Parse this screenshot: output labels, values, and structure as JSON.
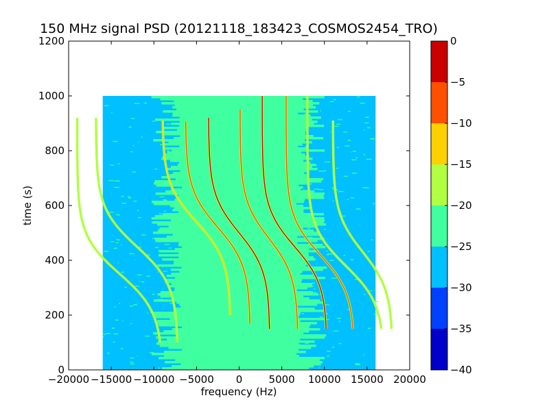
{
  "chart_data": {
    "type": "heatmap",
    "title": "150 MHz signal PSD (20121118_183423_COSMOS2454_TRO)",
    "xlabel": "frequency (Hz)",
    "ylabel": "time (s)",
    "xlim": [
      -20000,
      20000
    ],
    "ylim": [
      0,
      1200
    ],
    "xticks": [
      -20000,
      -15000,
      -10000,
      -5000,
      0,
      5000,
      10000,
      15000,
      20000
    ],
    "xtick_labels": [
      "−20000",
      "−15000",
      "−10000",
      "−5000",
      "0",
      "5000",
      "10000",
      "15000",
      "20000"
    ],
    "yticks": [
      0,
      200,
      400,
      600,
      800,
      1000,
      1200
    ],
    "ytick_labels": [
      "0",
      "200",
      "400",
      "600",
      "800",
      "1000",
      "1200"
    ],
    "data_extent": {
      "freq": [
        -16000,
        16000
      ],
      "time": [
        0,
        1000
      ]
    },
    "noise_band": {
      "inner_freq": [
        -7000,
        7000
      ],
      "outer_freq": [
        -10000,
        10000
      ],
      "level": -22.5,
      "background_level": -27.5
    },
    "traces": [
      {
        "center_freq": -12000,
        "t0": 450,
        "half_span": 4800,
        "t_range": [
          100,
          920
        ],
        "peak_level": -17
      },
      {
        "center_freq": -5000,
        "t0": 540,
        "half_span": 4000,
        "t_range": [
          200,
          910
        ],
        "peak_level": -12
      },
      {
        "center_freq": -2500,
        "t0": 520,
        "half_span": 3800,
        "t_range": [
          170,
          905
        ],
        "peak_level": -7
      },
      {
        "center_freq": 0,
        "t0": 500,
        "half_span": 3600,
        "t_range": [
          150,
          920
        ],
        "peak_level": -3
      },
      {
        "center_freq": 3500,
        "t0": 480,
        "half_span": 3400,
        "t_range": [
          150,
          950
        ],
        "peak_level": -7
      },
      {
        "center_freq": 6500,
        "t0": 450,
        "half_span": 3800,
        "t_range": [
          150,
          1000
        ],
        "peak_level": -3
      },
      {
        "center_freq": 9500,
        "t0": 420,
        "half_span": 4000,
        "t_range": [
          150,
          1000
        ],
        "peak_level": -7
      },
      {
        "center_freq": 12500,
        "t0": 380,
        "half_span": 4500,
        "t_range": [
          150,
          1000
        ],
        "peak_level": -17
      },
      {
        "center_freq": 14500,
        "t0": 430,
        "half_span": 3500,
        "t_range": [
          150,
          910
        ],
        "peak_level": -17
      },
      {
        "center_freq": -14000,
        "t0": 350,
        "half_span": 5000,
        "t_range": [
          100,
          920
        ],
        "peak_level": -20
      }
    ],
    "colorbar": {
      "levels": [
        -40,
        -35,
        -30,
        -25,
        -20,
        -15,
        -10,
        -5,
        0
      ],
      "tick_labels": [
        "−40",
        "−35",
        "−30",
        "−25",
        "−20",
        "−15",
        "−10",
        "−5",
        "0"
      ],
      "colors": [
        "#0000c8",
        "#0040ff",
        "#00c0ff",
        "#40ffa0",
        "#b0ff40",
        "#ffd000",
        "#ff5000",
        "#c80000"
      ]
    }
  }
}
